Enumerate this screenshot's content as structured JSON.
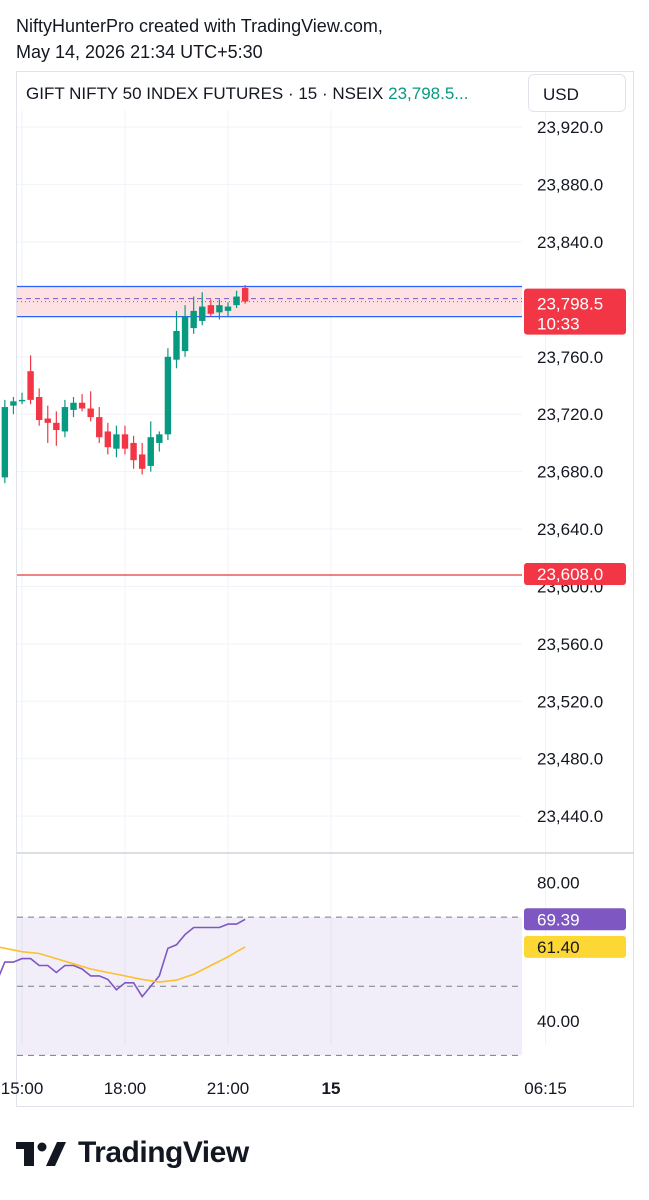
{
  "header": {
    "line1": "NiftyHunterPro created with TradingView.com,",
    "line2": "May 14, 2026 21:34 UTC+5:30"
  },
  "legend": {
    "title": "GIFT NIFTY 50 INDEX FUTURES · 15 · NSEIX",
    "price": "23,798.5..."
  },
  "currency_button": "USD",
  "footer": {
    "brand": "TradingView"
  },
  "colors": {
    "up": "#089981",
    "down": "#f23645",
    "rsi": "#7e57c2",
    "rsi_ma": "#fbc02d",
    "zone_fill": "#fcd9dc",
    "zone_border": "#2962ff",
    "grid": "#f0f3fa"
  },
  "chart_data": [
    {
      "type": "candlestick",
      "y_ticks": [
        23920,
        23880,
        23840,
        23800,
        23760,
        23720,
        23680,
        23640,
        23600,
        23560,
        23520,
        23480,
        23440
      ],
      "y_tick_labels": [
        "23,920.0",
        "23,880.0",
        "23,840.0",
        "23,800.0",
        "23,760.0",
        "23,720.0",
        "23,680.0",
        "23,640.0",
        "23,600.0",
        "23,560.0",
        "23,520.0",
        "23,480.0",
        "23,440.0"
      ],
      "hidden_ticks": [
        "23,800.0",
        "23,600.0"
      ],
      "ylim": [
        23415,
        23925
      ],
      "x_labels": [
        "15:00",
        "18:00",
        "21:00",
        "15",
        "06:15"
      ],
      "x_label_bold": [
        false,
        false,
        false,
        true,
        false
      ],
      "x_label_values": [
        15,
        18,
        21,
        24,
        30.25
      ],
      "candles": [
        {
          "t": 14.25,
          "o": 23703,
          "h": 23728,
          "l": 23658,
          "c": 23684
        },
        {
          "t": 14.5,
          "o": 23676,
          "h": 23730,
          "l": 23672,
          "c": 23725
        },
        {
          "t": 14.75,
          "o": 23726,
          "h": 23732,
          "l": 23720,
          "c": 23729
        },
        {
          "t": 15.0,
          "o": 23729,
          "h": 23735,
          "l": 23727,
          "c": 23730
        },
        {
          "t": 15.25,
          "o": 23750,
          "h": 23761,
          "l": 23727,
          "c": 23730
        },
        {
          "t": 15.5,
          "o": 23732,
          "h": 23738,
          "l": 23712,
          "c": 23716
        },
        {
          "t": 15.75,
          "o": 23717,
          "h": 23726,
          "l": 23700,
          "c": 23714
        },
        {
          "t": 16.0,
          "o": 23714,
          "h": 23722,
          "l": 23698,
          "c": 23709
        },
        {
          "t": 16.25,
          "o": 23708,
          "h": 23730,
          "l": 23704,
          "c": 23725
        },
        {
          "t": 16.5,
          "o": 23723,
          "h": 23732,
          "l": 23718,
          "c": 23728
        },
        {
          "t": 16.75,
          "o": 23728,
          "h": 23734,
          "l": 23722,
          "c": 23724
        },
        {
          "t": 17.0,
          "o": 23724,
          "h": 23736,
          "l": 23715,
          "c": 23718
        },
        {
          "t": 17.25,
          "o": 23718,
          "h": 23725,
          "l": 23700,
          "c": 23704
        },
        {
          "t": 17.5,
          "o": 23708,
          "h": 23714,
          "l": 23692,
          "c": 23697
        },
        {
          "t": 17.75,
          "o": 23696,
          "h": 23712,
          "l": 23690,
          "c": 23706
        },
        {
          "t": 18.0,
          "o": 23706,
          "h": 23712,
          "l": 23692,
          "c": 23696
        },
        {
          "t": 18.25,
          "o": 23700,
          "h": 23705,
          "l": 23682,
          "c": 23688
        },
        {
          "t": 18.5,
          "o": 23692,
          "h": 23700,
          "l": 23678,
          "c": 23682
        },
        {
          "t": 18.75,
          "o": 23684,
          "h": 23715,
          "l": 23680,
          "c": 23704
        },
        {
          "t": 19.0,
          "o": 23700,
          "h": 23708,
          "l": 23694,
          "c": 23706
        },
        {
          "t": 19.25,
          "o": 23706,
          "h": 23766,
          "l": 23702,
          "c": 23760
        },
        {
          "t": 19.5,
          "o": 23758,
          "h": 23792,
          "l": 23752,
          "c": 23778
        },
        {
          "t": 19.75,
          "o": 23764,
          "h": 23796,
          "l": 23760,
          "c": 23788
        },
        {
          "t": 20.0,
          "o": 23780,
          "h": 23802,
          "l": 23776,
          "c": 23792
        },
        {
          "t": 20.25,
          "o": 23785,
          "h": 23805,
          "l": 23782,
          "c": 23795
        },
        {
          "t": 20.5,
          "o": 23796,
          "h": 23800,
          "l": 23788,
          "c": 23790
        },
        {
          "t": 20.75,
          "o": 23791,
          "h": 23800,
          "l": 23786,
          "c": 23796
        },
        {
          "t": 21.0,
          "o": 23792,
          "h": 23798,
          "l": 23788,
          "c": 23795
        },
        {
          "t": 21.25,
          "o": 23796,
          "h": 23806,
          "l": 23794,
          "c": 23802
        },
        {
          "t": 21.5,
          "o": 23808,
          "h": 23810,
          "l": 23797,
          "c": 23798.5
        }
      ],
      "zone": {
        "top": 23809,
        "bottom": 23788
      },
      "current_price_line": 23798.5,
      "hline": 23608,
      "badges": [
        {
          "text": "23,798.5",
          "sub": "10:33",
          "value": 23798.5,
          "color": "#f23645"
        },
        {
          "text": "23,608.0",
          "value": 23608,
          "color": "#f23645"
        }
      ]
    },
    {
      "type": "line",
      "name": "RSI",
      "ylim": [
        33,
        88
      ],
      "y_ticks": [
        80,
        40
      ],
      "y_tick_labels": [
        "80.00",
        "40.00"
      ],
      "band_upper": 70,
      "band_mid": 50,
      "band_lower": 30,
      "series": [
        {
          "name": "RSI",
          "color": "#7e57c2",
          "x": [
            14.0,
            14.25,
            14.5,
            14.75,
            15.0,
            15.25,
            15.5,
            15.75,
            16.0,
            16.25,
            16.5,
            16.75,
            17.0,
            17.25,
            17.5,
            17.75,
            18.0,
            18.25,
            18.5,
            18.75,
            19.0,
            19.25,
            19.5,
            19.75,
            20.0,
            20.25,
            20.5,
            20.75,
            21.0,
            21.25,
            21.5
          ],
          "values": [
            53,
            51,
            57,
            57,
            58,
            58,
            56,
            56,
            54,
            56,
            56,
            55,
            53,
            53,
            52,
            49,
            51,
            51,
            47,
            50,
            53,
            61,
            62,
            65,
            67,
            67,
            67,
            67,
            68,
            68,
            69.39
          ]
        },
        {
          "name": "RSI-based MA",
          "color": "#fbc02d",
          "x": [
            14.0,
            14.5,
            15.0,
            15.5,
            16.0,
            16.5,
            17.0,
            17.5,
            18.0,
            18.5,
            19.0,
            19.5,
            20.0,
            20.5,
            21.0,
            21.25,
            21.5
          ],
          "values": [
            62,
            61,
            60,
            59.5,
            58,
            56.5,
            55,
            54,
            53,
            52,
            51.2,
            51.8,
            53.5,
            56,
            58.5,
            60,
            61.4
          ]
        }
      ],
      "badges": [
        {
          "text": "69.39",
          "value": 69.39,
          "color": "#7e57c2"
        },
        {
          "text": "61.40",
          "value": 61.4,
          "color": "#fdd835"
        }
      ]
    }
  ]
}
